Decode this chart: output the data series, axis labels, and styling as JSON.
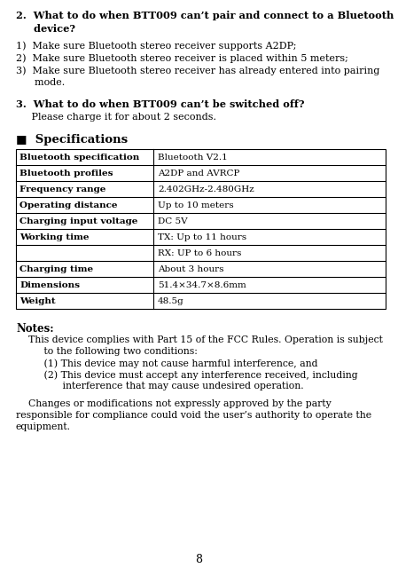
{
  "bg_color": "#ffffff",
  "text_color": "#000000",
  "page_number": "8",
  "section2_title": "2.  What to do when BTT009 can’t pair and connect to a Bluetooth\n     device?",
  "section2_items": [
    "1)  Make sure Bluetooth stereo receiver supports A2DP;",
    "2)  Make sure Bluetooth stereo receiver is placed within 5 meters;",
    "3)  Make sure Bluetooth stereo receiver has already entered into pairing\n      mode."
  ],
  "section3_title": "3.  What to do when BTT009 can’t be switched off?",
  "section3_body": "     Please charge it for about 2 seconds.",
  "spec_heading": "■  Specifications",
  "spec_rows": [
    [
      "Bluetooth specification",
      "Bluetooth V2.1"
    ],
    [
      "Bluetooth profiles",
      "A2DP and AVRCP"
    ],
    [
      "Frequency range",
      "2.402GHz-2.480GHz"
    ],
    [
      "Operating distance",
      "Up to 10 meters"
    ],
    [
      "Charging input voltage",
      "DC 5V"
    ],
    [
      "Working time",
      "TX: Up to 11 hours"
    ],
    [
      "",
      "RX: UP to 6 hours"
    ],
    [
      "Charging time",
      "About 3 hours"
    ],
    [
      "Dimensions",
      "51.4×34.7×8.6mm"
    ],
    [
      "Weight",
      "48.5g"
    ]
  ],
  "notes_heading": "Notes:",
  "notes_body1_line1": "    This device complies with Part 15 of the FCC Rules. Operation is subject",
  "notes_body1_line2": "         to the following two conditions:",
  "notes_item1": "         (1) This device may not cause harmful interference, and",
  "notes_item2a": "         (2) This device must accept any interference received, including",
  "notes_item2b": "               interference that may cause undesired operation.",
  "notes_body2_line1": "    Changes or modifications not expressly approved by the party",
  "notes_body2_line2": "responsible for compliance could void the user’s authority to operate the",
  "notes_body2_line3": "equipment."
}
